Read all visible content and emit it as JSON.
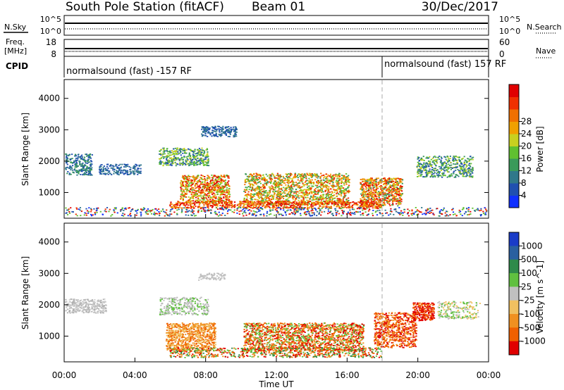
{
  "header": {
    "station": "South Pole Station (fitACF)",
    "beam": "Beam 01",
    "date": "30/Dec/2017"
  },
  "top_panels": {
    "nsky_label": "N.Sky",
    "nsky_ticks": [
      "10^5",
      "10^0"
    ],
    "nsearch_label": "N.Search",
    "nsearch_ticks": [
      "10^5",
      "10^0"
    ],
    "freq_label": "Freq.",
    "freq_unit": "[MHz]",
    "freq_ticks": [
      "18",
      "8"
    ],
    "nave_label": "Nave",
    "nave_ticks": [
      "60",
      "0"
    ],
    "cpid_label": "CPID",
    "cpid_segments": [
      {
        "text": "normalsound (fast) -157 RF",
        "start_hour": 0
      },
      {
        "text": "normalsound (fast) 157 RF",
        "start_hour": 18
      }
    ]
  },
  "chart_data": [
    {
      "type": "heatmap",
      "name": "power",
      "ylabel": "Slant Range [km]",
      "y_ticks": [
        "1000",
        "2000",
        "3000",
        "4000"
      ],
      "ylim": [
        180,
        4600
      ],
      "xlim_hours": [
        0,
        24
      ],
      "colorbar": {
        "label": "Power [dB]",
        "tick_labels": [
          "4",
          "8",
          "12",
          "16",
          "20",
          "24",
          "28"
        ],
        "colors": [
          "#1030ff",
          "#2050b0",
          "#30788a",
          "#3a9a5a",
          "#60c030",
          "#c8d020",
          "#f0a000",
          "#f07000",
          "#f03000",
          "#e00000"
        ]
      }
    },
    {
      "type": "heatmap",
      "name": "velocity",
      "ylabel": "Slant Range [km]",
      "y_ticks": [
        "1000",
        "2000",
        "3000",
        "4000"
      ],
      "ylim": [
        180,
        4600
      ],
      "xlim_hours": [
        0,
        24
      ],
      "colorbar": {
        "label": "Velocity [m s^-1]",
        "tick_labels": [
          "1000",
          "500",
          "100",
          "25",
          "-25",
          "-100",
          "-500",
          "-1000"
        ],
        "colors": [
          "#1a3cc8",
          "#2a60a0",
          "#2f8a4a",
          "#60c040",
          "#c0c0c0",
          "#f0c060",
          "#f09020",
          "#f06000",
          "#e00000"
        ]
      }
    }
  ],
  "x_axis": {
    "ticks": [
      "00:00",
      "04:00",
      "08:00",
      "12:00",
      "16:00",
      "20:00",
      "00:00"
    ],
    "label": "Time UT"
  }
}
